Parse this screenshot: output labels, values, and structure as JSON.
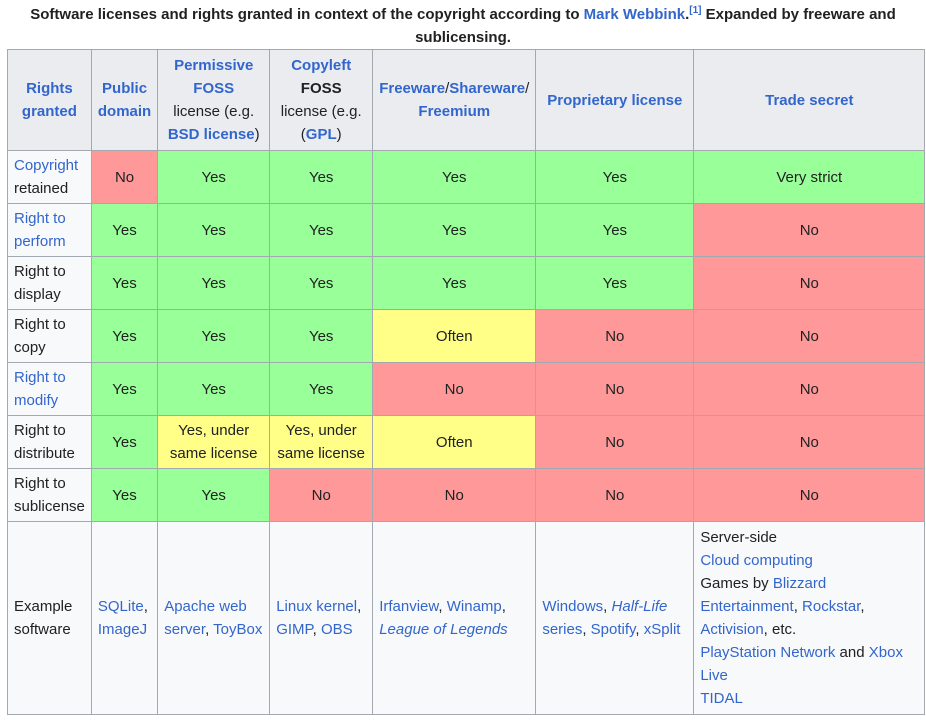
{
  "caption": {
    "text": "Software licenses and rights granted in context of the copyright according to ",
    "author": "Mark Webbink",
    "ref": "[1]",
    "text2": " Expanded by freeware and sublicensing."
  },
  "headers": {
    "rights_granted": "Rights granted",
    "public_domain": "Public domain",
    "permissive_1": "Permissive FOSS",
    "permissive_2": "license (e.g.",
    "permissive_3": "BSD license",
    "permissive_4": ")",
    "copyleft_1": "Copyleft",
    "copyleft_2": "FOSS",
    "copyleft_3": "license (e.g.",
    "copyleft_4": "GPL",
    "copyleft_5": ")",
    "freeware": "Freeware",
    "sep1": "/",
    "shareware": "Shareware",
    "sep2": "/",
    "freemium": "Freemium",
    "proprietary": "Proprietary license",
    "trade_secret": "Trade secret"
  },
  "rows": [
    {
      "label": "Copyright",
      "label2": " retained",
      "cells": [
        "No",
        "Yes",
        "Yes",
        "Yes",
        "Yes",
        "Very strict"
      ]
    },
    {
      "label": "Right to perform",
      "label2": "",
      "cells": [
        "Yes",
        "Yes",
        "Yes",
        "Yes",
        "Yes",
        "No"
      ]
    },
    {
      "label": "Right to display",
      "label2": "",
      "cells": [
        "Yes",
        "Yes",
        "Yes",
        "Yes",
        "Yes",
        "No"
      ]
    },
    {
      "label": "Right to copy",
      "label2": "",
      "cells": [
        "Yes",
        "Yes",
        "Yes",
        "Often",
        "No",
        "No"
      ]
    },
    {
      "label": "Right to modify",
      "label2": "",
      "cells": [
        "Yes",
        "Yes",
        "Yes",
        "No",
        "No",
        "No"
      ]
    },
    {
      "label": "Right to distribute",
      "label2": "",
      "cells": [
        "Yes",
        "Yes, under same license",
        "Yes, under same license",
        "Often",
        "No",
        "No"
      ]
    },
    {
      "label": "Right to sublicense",
      "label2": "",
      "cells": [
        "Yes",
        "Yes",
        "No",
        "No",
        "No",
        "No"
      ]
    }
  ],
  "examples": {
    "label": "Example software",
    "public_domain": {
      "a": "SQLite",
      "sep": ", ",
      "b": "ImageJ"
    },
    "permissive": {
      "a": "Apache web server",
      "sep": ", ",
      "b": "ToyBox"
    },
    "copyleft": {
      "a": "Linux kernel",
      "sep1": ", ",
      "b": "GIMP",
      "sep2": ", ",
      "c": "OBS"
    },
    "freeware": {
      "a": "Irfanview",
      "sep1": ", ",
      "b": "Winamp",
      "sep2": ", ",
      "c": "League of Legends"
    },
    "proprietary": {
      "a": "Windows",
      "sep1": ", ",
      "b": "Half-Life",
      "b2": " series",
      "sep2": ", ",
      "c": "Spotify",
      "sep3": ", ",
      "d": "xSplit"
    },
    "trade_secret": {
      "l1": "Server-side",
      "l2": "Cloud computing",
      "l3a": "Games by ",
      "l3b": "Blizzard Entertainment",
      "l3c": ", ",
      "l3d": "Rockstar",
      "l3e": ", ",
      "l3f": "Activision",
      "l3g": ", etc.",
      "l4a": "PlayStation Network",
      "l4b": " and ",
      "l4c": "Xbox Live",
      "l5": "TIDAL"
    }
  }
}
